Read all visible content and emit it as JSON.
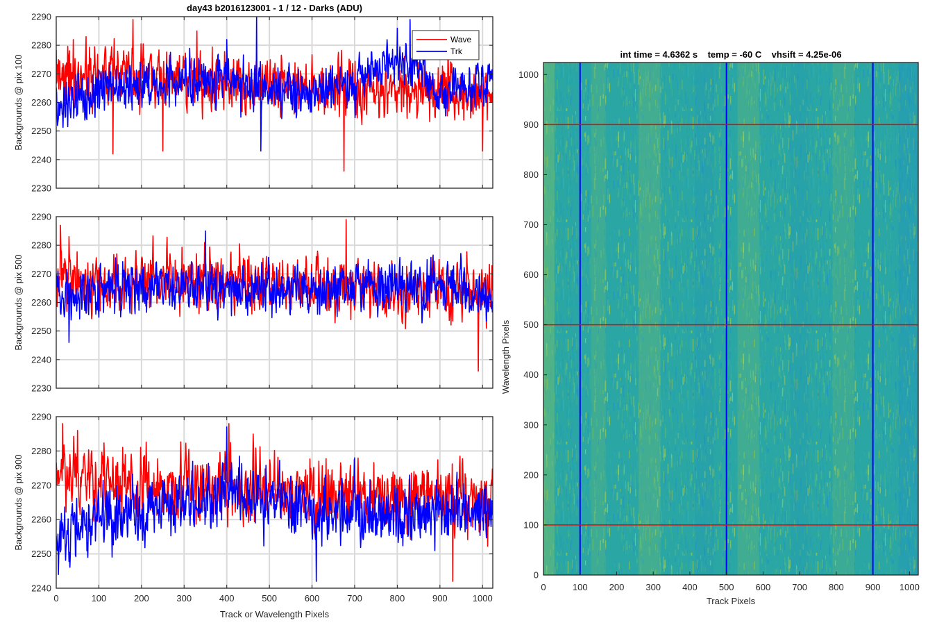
{
  "figure": {
    "title": "day43 b2016123001 - 1 / 12 - Darks (ADU)",
    "heatmap_title": "int time = 4.6362 s    temp = -60 C    vhsift = 4.25e-06"
  },
  "colors": {
    "wave": "#ff0000",
    "trk": "#0000ff",
    "grid": "#d9d9d9",
    "axis": "#262626",
    "heat_base": "#2aa6a4",
    "heat_yellow": "#a9cf46",
    "heat_blue": "#1f8fc9"
  },
  "chart_data": [
    {
      "type": "line",
      "title": "day43 b2016123001 - 1 / 12 - Darks (ADU)",
      "xlabel": "",
      "ylabel": "Backgrounds @ pix 100",
      "xlim": [
        0,
        1024
      ],
      "ylim": [
        2230,
        2290
      ],
      "xticks": [
        "0",
        "100",
        "200",
        "300",
        "400",
        "500",
        "600",
        "700",
        "800",
        "900",
        "1000"
      ],
      "yticks": [
        "2230",
        "2240",
        "2250",
        "2260",
        "2270",
        "2280",
        "2290"
      ],
      "grid": true,
      "legend": {
        "placement": "top-right",
        "entries": [
          "Wave",
          "Trk"
        ]
      },
      "series": [
        {
          "name": "Wave",
          "color": "#ff0000",
          "mean": 2267,
          "noise": 7.5,
          "drift": [
            [
              0,
              2270
            ],
            [
              300,
              2268
            ],
            [
              600,
              2265
            ],
            [
              1024,
              2263
            ]
          ],
          "spikes": [
            [
              5,
              2275
            ],
            [
              70,
              2283
            ],
            [
              133,
              2242
            ],
            [
              180,
              2289
            ],
            [
              250,
              2243
            ],
            [
              330,
              2285
            ],
            [
              675,
              2236
            ],
            [
              1000,
              2243
            ]
          ]
        },
        {
          "name": "Trk",
          "color": "#0000ff",
          "mean": 2266,
          "noise": 6.5,
          "drift": [
            [
              0,
              2258
            ],
            [
              100,
              2265
            ],
            [
              400,
              2268
            ],
            [
              600,
              2262
            ],
            [
              830,
              2276
            ],
            [
              900,
              2263
            ],
            [
              1024,
              2268
            ]
          ],
          "spikes": [
            [
              470,
              2290
            ],
            [
              400,
              2282
            ],
            [
              800,
              2286
            ],
            [
              830,
              2289
            ],
            [
              480,
              2243
            ],
            [
              1000,
              2273
            ]
          ]
        }
      ]
    },
    {
      "type": "line",
      "xlabel": "",
      "ylabel": "Backgrounds @ pix 500",
      "xlim": [
        0,
        1024
      ],
      "ylim": [
        2230,
        2290
      ],
      "xticks": [
        "0",
        "100",
        "200",
        "300",
        "400",
        "500",
        "600",
        "700",
        "800",
        "900",
        "1000"
      ],
      "yticks": [
        "2230",
        "2240",
        "2250",
        "2260",
        "2270",
        "2280",
        "2290"
      ],
      "grid": true,
      "series": [
        {
          "name": "Wave",
          "color": "#ff0000",
          "mean": 2266,
          "noise": 7.5,
          "drift": [
            [
              0,
              2268
            ],
            [
              500,
              2266
            ],
            [
              1024,
              2264
            ]
          ],
          "spikes": [
            [
              10,
              2287
            ],
            [
              30,
              2283
            ],
            [
              680,
              2289
            ],
            [
              990,
              2236
            ]
          ]
        },
        {
          "name": "Trk",
          "color": "#0000ff",
          "mean": 2265,
          "noise": 6.5,
          "drift": [
            [
              0,
              2262
            ],
            [
              150,
              2266
            ],
            [
              600,
              2264
            ],
            [
              900,
              2266
            ],
            [
              1024,
              2262
            ]
          ],
          "spikes": [
            [
              30,
              2246
            ],
            [
              350,
              2285
            ],
            [
              870,
              2275
            ]
          ]
        }
      ]
    },
    {
      "type": "line",
      "xlabel": "Track or Wavelength Pixels",
      "ylabel": "Backgrounds @ pix 900",
      "xlim": [
        0,
        1024
      ],
      "ylim": [
        2240,
        2290
      ],
      "xticks": [
        "0",
        "100",
        "200",
        "300",
        "400",
        "500",
        "600",
        "700",
        "800",
        "900",
        "1000"
      ],
      "yticks": [
        "2240",
        "2250",
        "2260",
        "2270",
        "2280",
        "2290"
      ],
      "grid": true,
      "series": [
        {
          "name": "Wave",
          "color": "#ff0000",
          "mean": 2268,
          "noise": 7.5,
          "drift": [
            [
              0,
              2272
            ],
            [
              500,
              2268
            ],
            [
              1024,
              2266
            ]
          ],
          "spikes": [
            [
              15,
              2288
            ],
            [
              50,
              2286
            ],
            [
              405,
              2288
            ],
            [
              930,
              2242
            ]
          ]
        },
        {
          "name": "Trk",
          "color": "#0000ff",
          "mean": 2263,
          "noise": 6.5,
          "drift": [
            [
              0,
              2252
            ],
            [
              60,
              2258
            ],
            [
              400,
              2268
            ],
            [
              600,
              2262
            ],
            [
              1024,
              2262
            ]
          ],
          "spikes": [
            [
              5,
              2244
            ],
            [
              400,
              2287
            ],
            [
              610,
              2242
            ],
            [
              700,
              2278
            ]
          ]
        }
      ]
    },
    {
      "type": "heatmap",
      "title": "int time = 4.6362 s    temp = -60 C    vhsift = 4.25e-06",
      "xlabel": "Track Pixels",
      "ylabel": "Wavelength Pixels",
      "xlim": [
        0,
        1024
      ],
      "ylim": [
        0,
        1024
      ],
      "xticks": [
        "0",
        "100",
        "200",
        "300",
        "400",
        "500",
        "600",
        "700",
        "800",
        "900",
        "1000"
      ],
      "yticks": [
        "0",
        "100",
        "200",
        "300",
        "400",
        "500",
        "600",
        "700",
        "800",
        "900",
        "1000"
      ],
      "colormap": "parula",
      "vertical_lines": {
        "color": "#0000ff",
        "x": [
          100,
          500,
          900
        ]
      },
      "horizontal_lines": {
        "color": "#ff0000",
        "y": [
          100,
          500,
          900
        ]
      }
    }
  ]
}
